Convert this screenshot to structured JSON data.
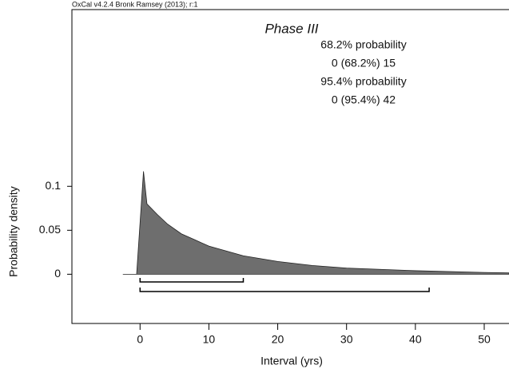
{
  "chart_data": {
    "type": "area",
    "caption": "OxCal v4.2.4 Bronk Ramsey (2013); r:1",
    "title": "Phase III",
    "xlabel": "Interval (yrs)",
    "ylabel": "Probability density",
    "x": [
      -2.5,
      -0.5,
      0.5,
      1,
      2.5,
      4,
      6,
      8,
      10,
      15,
      20,
      25,
      30,
      40,
      50,
      53.6
    ],
    "values": [
      0,
      0,
      0.117,
      0.08,
      0.068,
      0.057,
      0.046,
      0.039,
      0.032,
      0.021,
      0.0145,
      0.01,
      0.007,
      0.004,
      0.002,
      0.0015
    ],
    "color": "#6e6e6e",
    "xlim": [
      -9.9,
      53.6
    ],
    "ylim": [
      -0.056,
      0.301
    ],
    "xticks": [
      0,
      10,
      20,
      30,
      40,
      50
    ],
    "yticks": [
      0,
      0.05,
      0.1
    ],
    "ranges": [
      {
        "label": "68.2% probability",
        "text": "0 (68.2%) 15",
        "from": 0,
        "to": 15
      },
      {
        "label": "95.4% probability",
        "text": "0 (95.4%) 42",
        "from": 0,
        "to": 42
      }
    ]
  }
}
